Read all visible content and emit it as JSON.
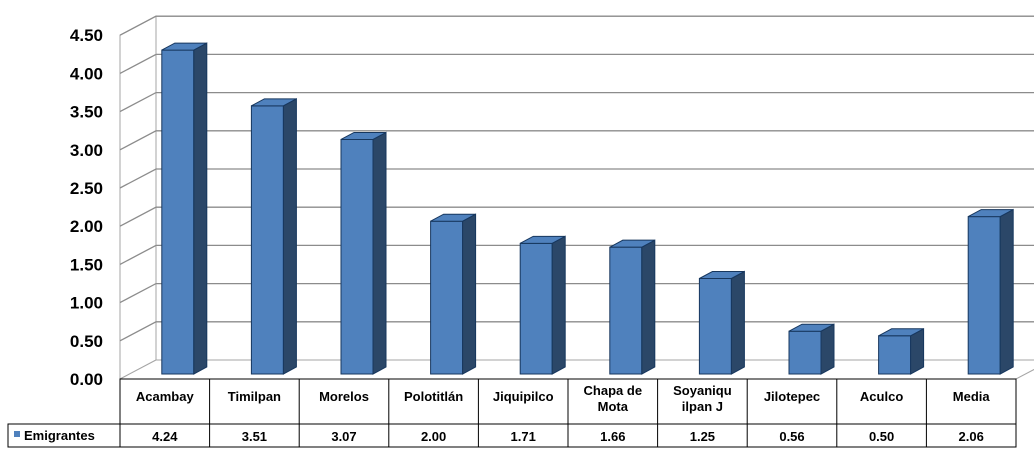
{
  "chart_data": {
    "type": "bar",
    "categories": [
      "Acambay",
      "Timilpan",
      "Morelos",
      "Polotitlán",
      "Jiquipilco",
      "Chapa de Mota",
      "Soyaniquilpan J",
      "Jilotepec",
      "Aculco",
      "Media"
    ],
    "category_label_lines": [
      [
        "Acambay"
      ],
      [
        "Timilpan"
      ],
      [
        "Morelos"
      ],
      [
        "Polotitlán"
      ],
      [
        "Jiquipilco"
      ],
      [
        "Chapa de",
        "Mota"
      ],
      [
        "Soyaniqu",
        "ilpan J"
      ],
      [
        "Jilotepec"
      ],
      [
        "Aculco"
      ],
      [
        "Media"
      ]
    ],
    "series": [
      {
        "name": "Emigrantes",
        "values": [
          4.24,
          3.51,
          3.07,
          2.0,
          1.71,
          1.66,
          1.25,
          0.56,
          0.5,
          2.06
        ],
        "color": "#4F81BD"
      }
    ],
    "data_labels": [
      "4.24",
      "3.51",
      "3.07",
      "2.00",
      "1.71",
      "1.66",
      "1.25",
      "0.56",
      "0.50",
      "2.06"
    ],
    "y_ticks": [
      "0.00",
      "0.50",
      "1.00",
      "1.50",
      "2.00",
      "2.50",
      "3.00",
      "3.50",
      "4.00",
      "4.50"
    ],
    "ylim": [
      0,
      4.5
    ],
    "title": "",
    "xlabel": "",
    "ylabel": "",
    "grid": true,
    "legend": "data-table",
    "style": "3d-column"
  }
}
